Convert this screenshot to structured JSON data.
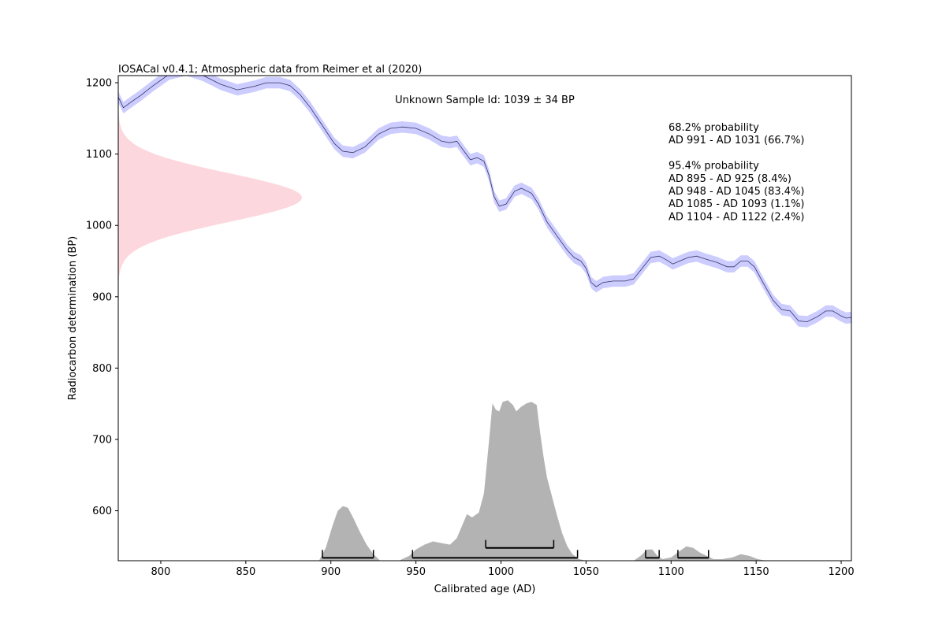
{
  "chart_data": {
    "type": "area",
    "header": "IOSACal v0.4.1; Atmospheric data from Reimer et al (2020)",
    "title": "Unknown Sample Id: 1039 ± 34 BP",
    "xlabel": "Calibrated age (AD)",
    "ylabel": "Radiocarbon determination (BP)",
    "xlim": [
      775,
      1206
    ],
    "ylim": [
      530,
      1210
    ],
    "x_ticks": [
      800,
      850,
      900,
      950,
      1000,
      1050,
      1100,
      1150,
      1200
    ],
    "y_ticks": [
      600,
      700,
      800,
      900,
      1000,
      1100,
      1200
    ],
    "grid": false,
    "colors": {
      "curve_band": "#ccccff",
      "curve_line": "#333366",
      "radiocarbon_pdf": "#fcd8de",
      "calibrated_pdf": "#b3b3b3",
      "range_bars": "#000000"
    },
    "radiocarbon_date": {
      "mean_bp": 1039,
      "sigma_bp": 34
    },
    "calibration_curve": {
      "name": "IntCal20",
      "band_halfwidth_bp": 8,
      "points": [
        [
          775,
          1180
        ],
        [
          778,
          1165
        ],
        [
          782,
          1172
        ],
        [
          788,
          1182
        ],
        [
          795,
          1195
        ],
        [
          805,
          1212
        ],
        [
          815,
          1218
        ],
        [
          825,
          1210
        ],
        [
          835,
          1198
        ],
        [
          845,
          1190
        ],
        [
          855,
          1195
        ],
        [
          862,
          1200
        ],
        [
          870,
          1200
        ],
        [
          876,
          1196
        ],
        [
          882,
          1183
        ],
        [
          888,
          1165
        ],
        [
          895,
          1140
        ],
        [
          902,
          1115
        ],
        [
          907,
          1104
        ],
        [
          913,
          1102
        ],
        [
          920,
          1110
        ],
        [
          928,
          1128
        ],
        [
          935,
          1136
        ],
        [
          942,
          1138
        ],
        [
          950,
          1136
        ],
        [
          958,
          1128
        ],
        [
          965,
          1118
        ],
        [
          970,
          1116
        ],
        [
          974,
          1118
        ],
        [
          978,
          1105
        ],
        [
          982,
          1092
        ],
        [
          986,
          1095
        ],
        [
          990,
          1090
        ],
        [
          993,
          1070
        ],
        [
          996,
          1040
        ],
        [
          999,
          1027
        ],
        [
          1003,
          1030
        ],
        [
          1008,
          1048
        ],
        [
          1012,
          1052
        ],
        [
          1018,
          1045
        ],
        [
          1022,
          1030
        ],
        [
          1027,
          1005
        ],
        [
          1033,
          985
        ],
        [
          1039,
          965
        ],
        [
          1043,
          955
        ],
        [
          1047,
          950
        ],
        [
          1050,
          940
        ],
        [
          1053,
          920
        ],
        [
          1056,
          914
        ],
        [
          1060,
          920
        ],
        [
          1066,
          922
        ],
        [
          1073,
          922
        ],
        [
          1078,
          925
        ],
        [
          1083,
          940
        ],
        [
          1088,
          955
        ],
        [
          1093,
          957
        ],
        [
          1097,
          952
        ],
        [
          1101,
          946
        ],
        [
          1105,
          950
        ],
        [
          1110,
          955
        ],
        [
          1115,
          957
        ],
        [
          1120,
          953
        ],
        [
          1127,
          948
        ],
        [
          1133,
          942
        ],
        [
          1137,
          942
        ],
        [
          1141,
          950
        ],
        [
          1145,
          950
        ],
        [
          1149,
          942
        ],
        [
          1154,
          920
        ],
        [
          1160,
          895
        ],
        [
          1165,
          882
        ],
        [
          1170,
          880
        ],
        [
          1175,
          866
        ],
        [
          1180,
          865
        ],
        [
          1186,
          872
        ],
        [
          1191,
          880
        ],
        [
          1195,
          880
        ],
        [
          1200,
          873
        ],
        [
          1203,
          870
        ],
        [
          1206,
          871
        ]
      ]
    },
    "calibrated_distribution": {
      "note_scale": "relative probability density, peak = 1",
      "points": [
        [
          893,
          0.0
        ],
        [
          897,
          0.08
        ],
        [
          901,
          0.22
        ],
        [
          904,
          0.31
        ],
        [
          907,
          0.34
        ],
        [
          910,
          0.33
        ],
        [
          913,
          0.27
        ],
        [
          917,
          0.18
        ],
        [
          921,
          0.1
        ],
        [
          925,
          0.04
        ],
        [
          929,
          0.0
        ],
        [
          940,
          0.0
        ],
        [
          946,
          0.03
        ],
        [
          950,
          0.07
        ],
        [
          955,
          0.1
        ],
        [
          960,
          0.12
        ],
        [
          965,
          0.11
        ],
        [
          970,
          0.1
        ],
        [
          974,
          0.14
        ],
        [
          978,
          0.24
        ],
        [
          980,
          0.29
        ],
        [
          983,
          0.27
        ],
        [
          987,
          0.3
        ],
        [
          990,
          0.42
        ],
        [
          993,
          0.75
        ],
        [
          995,
          0.98
        ],
        [
          997,
          0.94
        ],
        [
          999,
          0.93
        ],
        [
          1001,
          0.99
        ],
        [
          1004,
          1.0
        ],
        [
          1007,
          0.97
        ],
        [
          1009,
          0.93
        ],
        [
          1012,
          0.96
        ],
        [
          1015,
          0.98
        ],
        [
          1018,
          0.99
        ],
        [
          1021,
          0.97
        ],
        [
          1023,
          0.8
        ],
        [
          1025,
          0.65
        ],
        [
          1027,
          0.52
        ],
        [
          1030,
          0.4
        ],
        [
          1033,
          0.28
        ],
        [
          1036,
          0.17
        ],
        [
          1039,
          0.09
        ],
        [
          1042,
          0.04
        ],
        [
          1046,
          0.01
        ],
        [
          1050,
          0.0
        ],
        [
          1078,
          0.0
        ],
        [
          1082,
          0.03
        ],
        [
          1086,
          0.07
        ],
        [
          1089,
          0.07
        ],
        [
          1092,
          0.03
        ],
        [
          1095,
          0.01
        ],
        [
          1100,
          0.02
        ],
        [
          1105,
          0.06
        ],
        [
          1109,
          0.09
        ],
        [
          1113,
          0.08
        ],
        [
          1117,
          0.05
        ],
        [
          1121,
          0.03
        ],
        [
          1125,
          0.01
        ],
        [
          1130,
          0.01
        ],
        [
          1136,
          0.02
        ],
        [
          1141,
          0.04
        ],
        [
          1146,
          0.03
        ],
        [
          1151,
          0.01
        ],
        [
          1156,
          0.0
        ]
      ]
    },
    "intervals": {
      "p68": {
        "label": "68.2% probability",
        "ranges": [
          [
            991,
            1031
          ]
        ]
      },
      "p95": {
        "label": "95.4% probability",
        "ranges": [
          [
            895,
            925
          ],
          [
            948,
            1045
          ],
          [
            1085,
            1093
          ],
          [
            1104,
            1122
          ]
        ]
      }
    },
    "annotation_lines": [
      "68.2% probability",
      "AD 991 - AD 1031 (66.7%)",
      "",
      "95.4% probability",
      "AD 895 - AD 925 (8.4%)",
      "AD 948 - AD 1045 (83.4%)",
      "AD 1085 - AD 1093 (1.1%)",
      "AD 1104 - AD 1122 (2.4%)"
    ]
  }
}
